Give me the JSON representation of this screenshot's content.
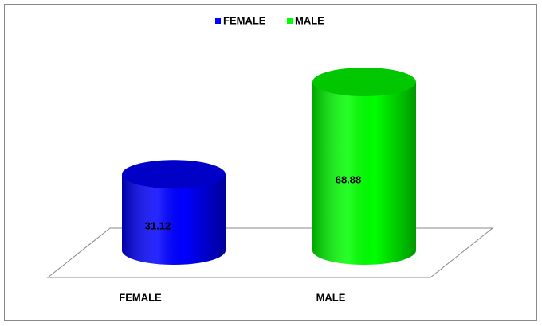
{
  "chart_data": {
    "type": "cylinder",
    "categories": [
      "FEMALE",
      "MALE"
    ],
    "values": [
      31.12,
      68.88
    ],
    "colors": [
      "#0000ff",
      "#00ff00"
    ],
    "legend": "top"
  }
}
